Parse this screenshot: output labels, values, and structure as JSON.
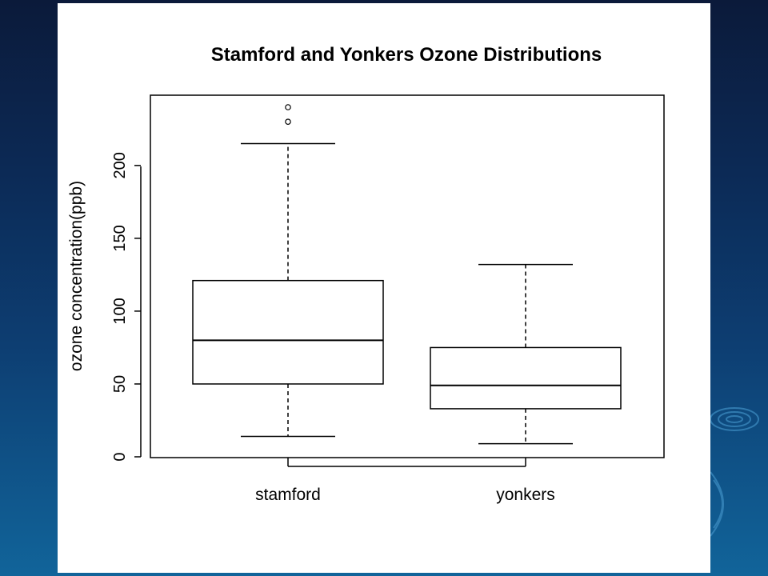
{
  "chart_data": {
    "type": "boxplot",
    "title": "Stamford and Yonkers Ozone Distributions",
    "xlabel": "",
    "ylabel": "ozone concentration(ppb)",
    "ylim": [
      0,
      240
    ],
    "yticks": [
      0,
      50,
      100,
      150,
      200
    ],
    "categories": [
      "stamford",
      "yonkers"
    ],
    "boxes": [
      {
        "name": "stamford",
        "whisker_low": 14,
        "q1": 50,
        "median": 80,
        "q3": 121,
        "whisker_high": 215,
        "outliers": [
          230,
          240
        ]
      },
      {
        "name": "yonkers",
        "whisker_low": 9,
        "q1": 33,
        "median": 49,
        "q3": 75,
        "whisker_high": 132,
        "outliers": []
      }
    ]
  },
  "colors": {
    "background_top": "#0b1a3a",
    "background_bottom": "#11649a",
    "plot_panel": "#ffffff",
    "ink": "#000000"
  }
}
